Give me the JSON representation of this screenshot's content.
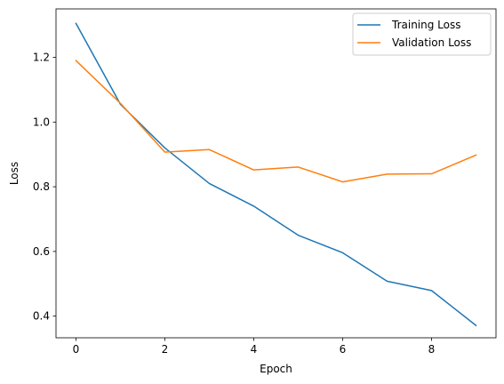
{
  "chart_data": {
    "type": "line",
    "title": "",
    "xlabel": "Epoch",
    "ylabel": "Loss",
    "xlim": [
      -0.45,
      9.45
    ],
    "ylim": [
      0.333,
      1.35
    ],
    "xticks": [
      0,
      2,
      4,
      6,
      8
    ],
    "xtick_labels": [
      "0",
      "2",
      "4",
      "6",
      "8"
    ],
    "yticks": [
      0.4,
      0.6,
      0.8,
      1.0,
      1.2
    ],
    "ytick_labels": [
      "0.4",
      "0.6",
      "0.8",
      "1.0",
      "1.2"
    ],
    "x": [
      0,
      1,
      2,
      3,
      4,
      5,
      6,
      7,
      8,
      9
    ],
    "series": [
      {
        "name": "Training Loss",
        "color": "#1f77b4",
        "values": [
          1.305,
          1.055,
          0.92,
          0.81,
          0.74,
          0.65,
          0.596,
          0.508,
          0.479,
          0.371
        ]
      },
      {
        "name": "Validation Loss",
        "color": "#ff7f0e",
        "values": [
          1.19,
          1.058,
          0.907,
          0.915,
          0.852,
          0.861,
          0.815,
          0.839,
          0.84,
          0.898
        ]
      }
    ],
    "grid": false,
    "legend_position": "top-right"
  }
}
